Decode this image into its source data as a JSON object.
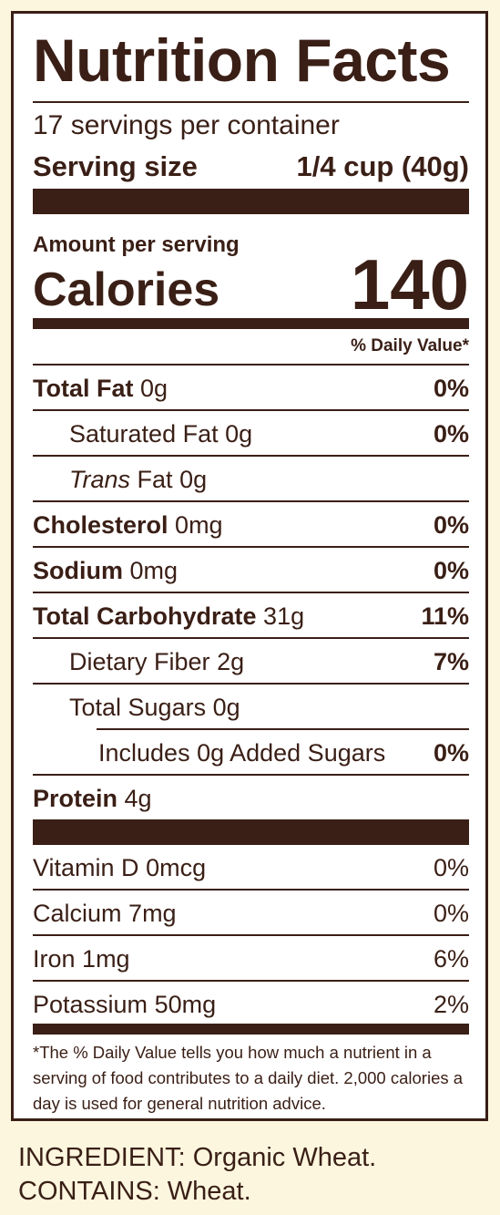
{
  "panel": {
    "title": "Nutrition Facts",
    "servings": "17 servings per container",
    "serving_size_label": "Serving size",
    "serving_size_value": "1/4 cup (40g)",
    "amount_per_serving": "Amount per serving",
    "calories_label": "Calories",
    "calories_value": "140",
    "daily_value_header": "% Daily Value*"
  },
  "nutrients": [
    {
      "name": "Total Fat",
      "amount": "0g",
      "dv": "0%"
    },
    {
      "name": "Saturated Fat",
      "amount": "0g",
      "dv": "0%"
    },
    {
      "name": "Trans",
      "name_suffix": "Fat",
      "amount": "0g",
      "dv": ""
    },
    {
      "name": "Cholesterol",
      "amount": "0mg",
      "dv": "0%"
    },
    {
      "name": "Sodium",
      "amount": "0mg",
      "dv": "0%"
    },
    {
      "name": "Total Carbohydrate",
      "amount": "31g",
      "dv": "11%"
    },
    {
      "name": "Dietary Fiber",
      "amount": "2g",
      "dv": "7%"
    },
    {
      "name": "Total Sugars",
      "amount": "0g",
      "dv": ""
    },
    {
      "name": "Includes 0g Added Sugars",
      "amount": "",
      "dv": "0%"
    },
    {
      "name": "Protein",
      "amount": "4g",
      "dv": ""
    }
  ],
  "vitamins": [
    {
      "name": "Vitamin D",
      "amount": "0mcg",
      "dv": "0%"
    },
    {
      "name": "Calcium",
      "amount": "7mg",
      "dv": "0%"
    },
    {
      "name": "Iron",
      "amount": "1mg",
      "dv": "6%"
    },
    {
      "name": "Potassium",
      "amount": "50mg",
      "dv": "2%"
    }
  ],
  "footnote": "*The % Daily Value tells you how much a nutrient in a serving of food contributes to a daily diet. 2,000 calories a day is used for general nutrition advice.",
  "ingredients": "INGREDIENT: Organic Wheat.",
  "contains": "CONTAINS: Wheat.",
  "colors": {
    "text": "#3a1f16",
    "background": "#fcf6de",
    "panel": "#ffffff"
  }
}
